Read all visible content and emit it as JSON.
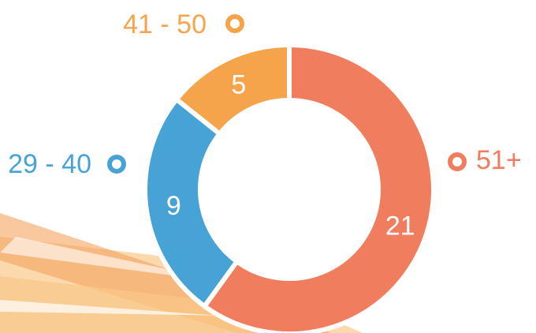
{
  "chart_data": {
    "type": "pie",
    "donut": true,
    "categories": [
      "51+",
      "29 - 40",
      "41 - 50"
    ],
    "values": [
      21,
      9,
      5
    ],
    "colors": [
      "#f07d5e",
      "#47a3d6",
      "#f5a44b"
    ]
  }
}
